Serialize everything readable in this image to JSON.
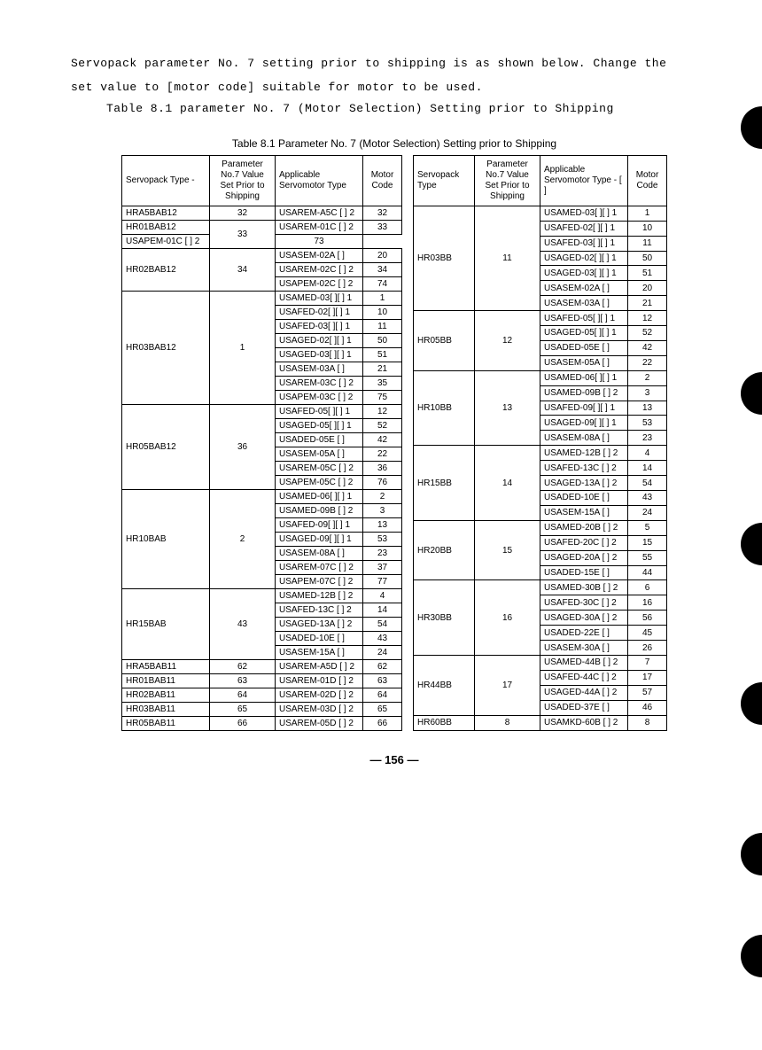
{
  "intro": {
    "line1": "Servopack parameter No. 7 setting prior to shipping is as shown below.  Change the",
    "line2": "set value to [motor code] suitable for motor to be used.",
    "caption_mono": "Table 8.1 parameter No. 7 (Motor Selection) Setting prior to Shipping",
    "caption_sans": "Table 8.1  Parameter No. 7 (Motor Selection)  Setting prior to Shipping"
  },
  "headers": {
    "left": {
      "c1": "Servopack Type -",
      "c2": "Parameter No.7 Value Set Prior to Shipping",
      "c3": "Applicable Servomotor Type",
      "c4": "Motor Code"
    },
    "right": {
      "c1": "Servopack Type",
      "c2": "Parameter No.7 Value Set Prior to Shipping",
      "c3": "Applicable Servomotor Type - [   ]",
      "c4": "Motor Code"
    }
  },
  "left_rows": [
    {
      "sp": "HRA5BAB12",
      "sp_span": 1,
      "pv": "32",
      "pv_span": 1,
      "mt": "USAREM-A5C [ ] 2",
      "mc": "32"
    },
    {
      "sp": "HR01BAB12",
      "sp_span": 1,
      "pv": "33",
      "pv_span": 2,
      "mt": "USAREM-01C [ ] 2",
      "mc": "33"
    },
    {
      "mt": "USAPEM-01C [ ] 2",
      "mc": "73"
    },
    {
      "sp": "HR02BAB12",
      "sp_span": 3,
      "pv": "34",
      "pv_span": 3,
      "mt": "USASEM-02A [ ]",
      "mc": "20"
    },
    {
      "mt": "USAREM-02C [ ] 2",
      "mc": "34"
    },
    {
      "mt": "USAPEM-02C [ ] 2",
      "mc": "74"
    },
    {
      "sp": "HR03BAB12",
      "sp_span": 8,
      "pv": "1",
      "pv_span": 8,
      "mt": "USAMED-03[ ][ ] 1",
      "mc": "1"
    },
    {
      "mt": "USAFED-02[ ][ ] 1",
      "mc": "10"
    },
    {
      "mt": "USAFED-03[ ][ ] 1",
      "mc": "11"
    },
    {
      "mt": "USAGED-02[ ][ ] 1",
      "mc": "50"
    },
    {
      "mt": "USAGED-03[ ][ ] 1",
      "mc": "51"
    },
    {
      "mt": "USASEM-03A [ ]",
      "mc": "21"
    },
    {
      "mt": "USAREM-03C [ ] 2",
      "mc": "35"
    },
    {
      "mt": "USAPEM-03C [ ] 2",
      "mc": "75"
    },
    {
      "sp": "HR05BAB12",
      "sp_span": 6,
      "pv": "36",
      "pv_span": 6,
      "mt": "USAFED-05[ ][ ] 1",
      "mc": "12"
    },
    {
      "mt": "USAGED-05[ ][ ] 1",
      "mc": "52"
    },
    {
      "mt": "USADED-05E [ ]",
      "mc": "42"
    },
    {
      "mt": "USASEM-05A [ ]",
      "mc": "22"
    },
    {
      "mt": "USAREM-05C [ ] 2",
      "mc": "36"
    },
    {
      "mt": "USAPEM-05C [ ] 2",
      "mc": "76"
    },
    {
      "sp": "HR10BAB",
      "sp_span": 7,
      "pv": "2",
      "pv_span": 7,
      "mt": "USAMED-06[ ][ ] 1",
      "mc": "2"
    },
    {
      "mt": "USAMED-09B [ ] 2",
      "mc": "3"
    },
    {
      "mt": "USAFED-09[ ][ ] 1",
      "mc": "13"
    },
    {
      "mt": "USAGED-09[ ][ ] 1",
      "mc": "53"
    },
    {
      "mt": "USASEM-08A [ ]",
      "mc": "23"
    },
    {
      "mt": "USAREM-07C [ ] 2",
      "mc": "37"
    },
    {
      "mt": "USAPEM-07C [ ] 2",
      "mc": "77"
    },
    {
      "sp": "HR15BAB",
      "sp_span": 5,
      "pv": "43",
      "pv_span": 5,
      "mt": "USAMED-12B [ ] 2",
      "mc": "4"
    },
    {
      "mt": "USAFED-13C [ ] 2",
      "mc": "14"
    },
    {
      "mt": "USAGED-13A [ ] 2",
      "mc": "54"
    },
    {
      "mt": "USADED-10E [ ]",
      "mc": "43"
    },
    {
      "mt": "USASEM-15A [ ]",
      "mc": "24"
    },
    {
      "sp": "HRA5BAB11",
      "sp_span": 1,
      "pv": "62",
      "pv_span": 1,
      "mt": "USAREM-A5D [ ] 2",
      "mc": "62"
    },
    {
      "sp": "HR01BAB11",
      "sp_span": 1,
      "pv": "63",
      "pv_span": 1,
      "mt": "USAREM-01D [ ] 2",
      "mc": "63"
    },
    {
      "sp": "HR02BAB11",
      "sp_span": 1,
      "pv": "64",
      "pv_span": 1,
      "mt": "USAREM-02D [ ] 2",
      "mc": "64"
    },
    {
      "sp": "HR03BAB11",
      "sp_span": 1,
      "pv": "65",
      "pv_span": 1,
      "mt": "USAREM-03D [ ] 2",
      "mc": "65"
    },
    {
      "sp": "HR05BAB11",
      "sp_span": 1,
      "pv": "66",
      "pv_span": 1,
      "mt": "USAREM-05D [ ] 2",
      "mc": "66"
    }
  ],
  "right_rows": [
    {
      "sp": "HR03BB",
      "sp_span": 7,
      "pv": "11",
      "pv_span": 7,
      "mt": "USAMED-03[ ][ ] 1",
      "mc": "1"
    },
    {
      "mt": "USAFED-02[ ][ ] 1",
      "mc": "10"
    },
    {
      "mt": "USAFED-03[ ][ ] 1",
      "mc": "11"
    },
    {
      "mt": "USAGED-02[ ][ ] 1",
      "mc": "50"
    },
    {
      "mt": "USAGED-03[ ][ ] 1",
      "mc": "51"
    },
    {
      "mt": "USASEM-02A [ ]",
      "mc": "20"
    },
    {
      "mt": "USASEM-03A [ ]",
      "mc": "21"
    },
    {
      "sp": "HR05BB",
      "sp_span": 4,
      "pv": "12",
      "pv_span": 4,
      "mt": "USAFED-05[ ][ ] 1",
      "mc": "12"
    },
    {
      "mt": "USAGED-05[ ][ ] 1",
      "mc": "52"
    },
    {
      "mt": "USADED-05E [ ]",
      "mc": "42"
    },
    {
      "mt": "USASEM-05A [ ]",
      "mc": "22"
    },
    {
      "sp": "HR10BB",
      "sp_span": 5,
      "pv": "13",
      "pv_span": 5,
      "mt": "USAMED-06[ ][ ] 1",
      "mc": "2"
    },
    {
      "mt": "USAMED-09B [ ] 2",
      "mc": "3"
    },
    {
      "mt": "USAFED-09[ ][ ] 1",
      "mc": "13"
    },
    {
      "mt": "USAGED-09[ ][ ] 1",
      "mc": "53"
    },
    {
      "mt": "USASEM-08A [ ]",
      "mc": "23"
    },
    {
      "sp": "HR15BB",
      "sp_span": 5,
      "pv": "14",
      "pv_span": 5,
      "mt": "USAMED-12B [ ] 2",
      "mc": "4"
    },
    {
      "mt": "USAFED-13C [ ] 2",
      "mc": "14"
    },
    {
      "mt": "USAGED-13A [ ] 2",
      "mc": "54"
    },
    {
      "mt": "USADED-10E [ ]",
      "mc": "43"
    },
    {
      "mt": "USASEM-15A [ ]",
      "mc": "24"
    },
    {
      "sp": "HR20BB",
      "sp_span": 4,
      "pv": "15",
      "pv_span": 4,
      "mt": "USAMED-20B [ ] 2",
      "mc": "5"
    },
    {
      "mt": "USAFED-20C [ ] 2",
      "mc": "15"
    },
    {
      "mt": "USAGED-20A [ ] 2",
      "mc": "55"
    },
    {
      "mt": "USADED-15E [ ]",
      "mc": "44"
    },
    {
      "sp": "HR30BB",
      "sp_span": 5,
      "pv": "16",
      "pv_span": 5,
      "mt": "USAMED-30B [ ] 2",
      "mc": "6"
    },
    {
      "mt": "USAFED-30C [ ] 2",
      "mc": "16"
    },
    {
      "mt": "USAGED-30A [ ] 2",
      "mc": "56"
    },
    {
      "mt": "USADED-22E [ ]",
      "mc": "45"
    },
    {
      "mt": "USASEM-30A [ ]",
      "mc": "26"
    },
    {
      "sp": "HR44BB",
      "sp_span": 4,
      "pv": "17",
      "pv_span": 4,
      "mt": "USAMED-44B [ ] 2",
      "mc": "7"
    },
    {
      "mt": "USAFED-44C [ ] 2",
      "mc": "17"
    },
    {
      "mt": "USAGED-44A [ ] 2",
      "mc": "57"
    },
    {
      "mt": "USADED-37E [ ]",
      "mc": "46"
    },
    {
      "sp": "HR60BB",
      "sp_span": 1,
      "pv": "8",
      "pv_span": 1,
      "mt": "USAMKD-60B [ ] 2",
      "mc": "8"
    }
  ],
  "page_number": "—  156  —"
}
